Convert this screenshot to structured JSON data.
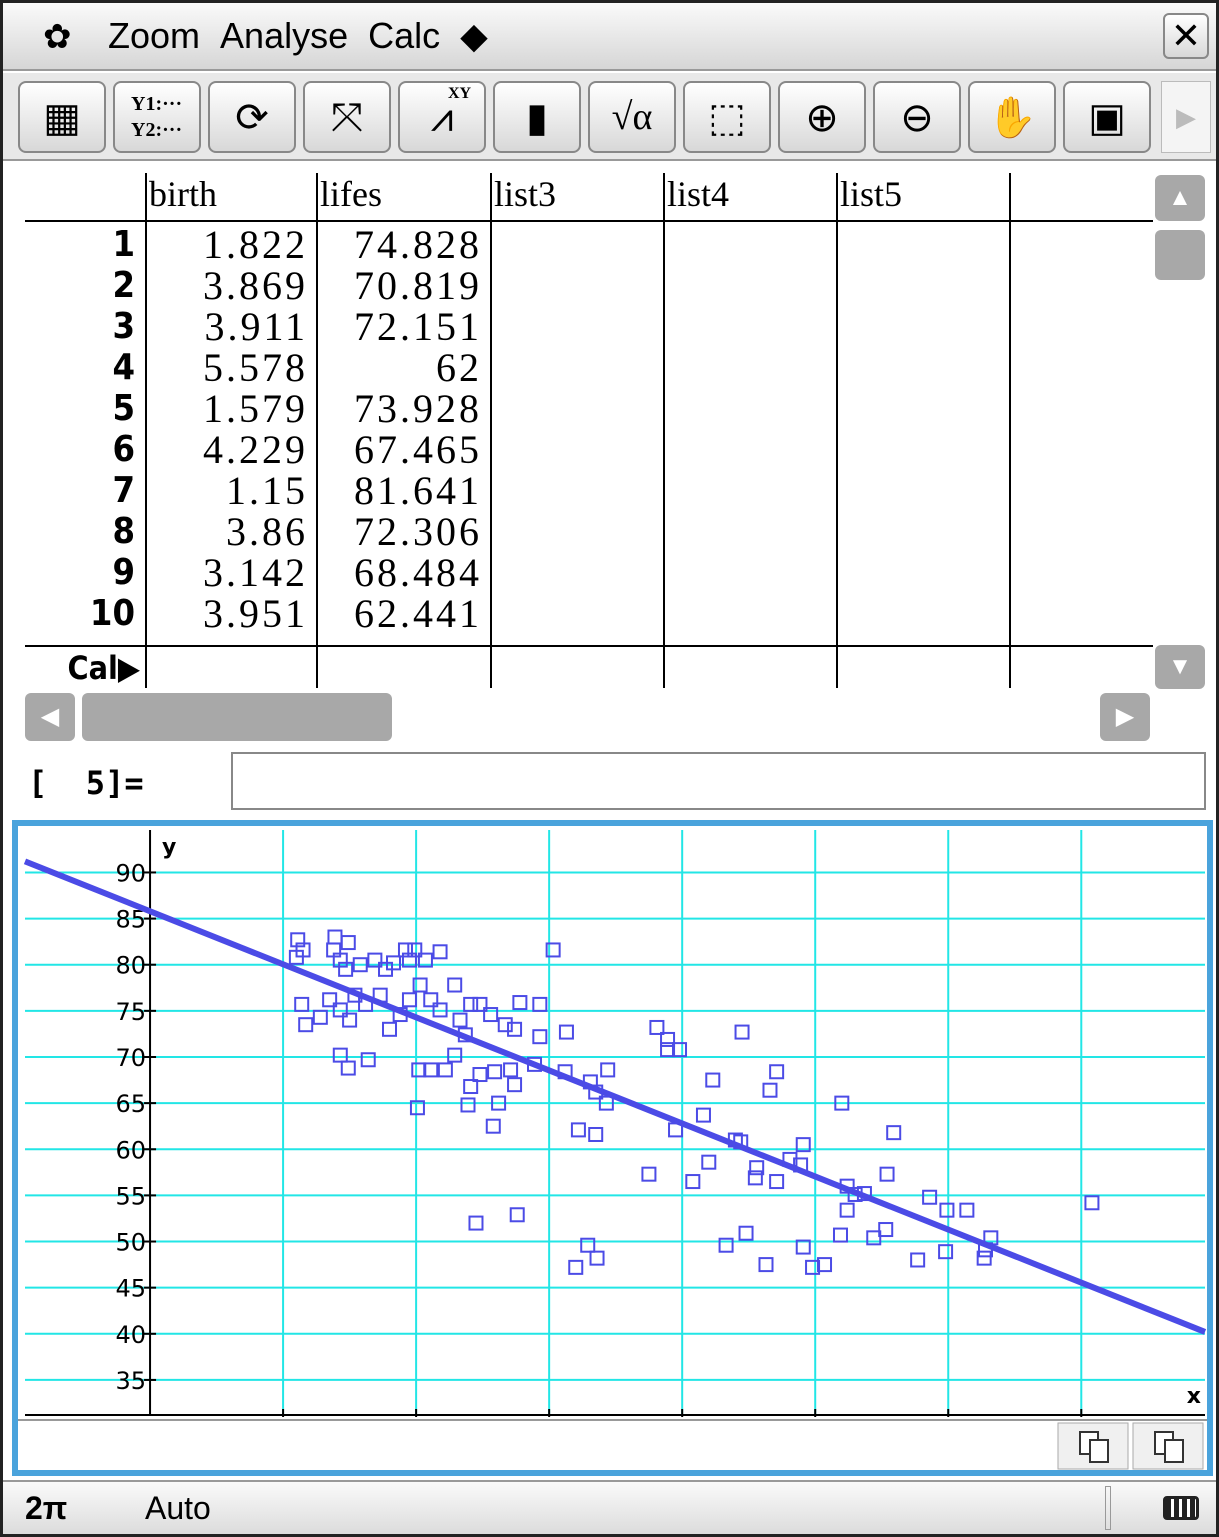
{
  "menu": {
    "items": [
      "Zoom",
      "Analyse",
      "Calc",
      "◆"
    ]
  },
  "toolbar": {
    "y_labels": [
      "Y1:···",
      "Y2:···"
    ],
    "sqrt_alpha": "√α",
    "xy": "XY"
  },
  "table": {
    "headers": [
      "birth",
      "lifes",
      "list3",
      "list4",
      "list5"
    ],
    "row_numbers": [
      1,
      2,
      3,
      4,
      5,
      6,
      7,
      8,
      9,
      10
    ],
    "rows": [
      [
        1.822,
        74.828
      ],
      [
        3.869,
        70.819
      ],
      [
        3.911,
        72.151
      ],
      [
        5.578,
        62
      ],
      [
        1.579,
        73.928
      ],
      [
        4.229,
        67.465
      ],
      [
        1.15,
        81.641
      ],
      [
        3.86,
        72.306
      ],
      [
        3.142,
        68.484
      ],
      [
        3.951,
        62.441
      ]
    ],
    "cal_label": "Cal▶"
  },
  "entry": {
    "label": "[  5]="
  },
  "chart_data": {
    "type": "scatter",
    "x_label": "x",
    "y_label": "y",
    "xlim": [
      -0.94,
      7.93
    ],
    "ylim": [
      31.2,
      94.6
    ],
    "xticks": [
      1,
      2,
      3,
      4,
      5,
      6,
      7
    ],
    "yticks": [
      35,
      40,
      45,
      50,
      55,
      60,
      65,
      70,
      75,
      80,
      85,
      90
    ],
    "grid": true,
    "grid_color": "#22e6e6",
    "points": {
      "color": "#4b4be6",
      "x": [
        1.11,
        1.15,
        1.1,
        1.39,
        1.38,
        1.49,
        1.43,
        1.47,
        1.58,
        1.69,
        1.77,
        1.83,
        1.92,
        1.99,
        1.95,
        2.07,
        2.18,
        3.03,
        1.14,
        1.17,
        1.28,
        1.35,
        1.43,
        1.5,
        1.54,
        1.62,
        1.73,
        1.8,
        1.88,
        1.95,
        2.03,
        2.11,
        2.18,
        2.29,
        2.33,
        2.41,
        2.48,
        2.56,
        2.67,
        2.78,
        2.93,
        2.74,
        2.93,
        3.13,
        1.43,
        1.49,
        1.64,
        2.02,
        2.11,
        2.22,
        2.29,
        2.37,
        2.41,
        2.48,
        2.59,
        2.71,
        2.74,
        2.89,
        2.01,
        2.39,
        2.62,
        2.58,
        3.12,
        3.31,
        3.35,
        3.43,
        3.44,
        3.22,
        3.35,
        3.81,
        3.89,
        3.89,
        3.98,
        4.45,
        4.23,
        4.71,
        4.66,
        5.2,
        4.16,
        3.95,
        4.4,
        4.44,
        4.91,
        5.59,
        4.2,
        3.75,
        4.08,
        4.56,
        4.55,
        4.71,
        4.81,
        4.89,
        5.54,
        5.24,
        5.3,
        5.37,
        5.24,
        5.86,
        5.99,
        6.14,
        7.08,
        2.45,
        2.76,
        3.29,
        3.2,
        3.36,
        4.33,
        4.48,
        4.63,
        4.91,
        4.98,
        5.07,
        5.19,
        5.44,
        5.53,
        5.77,
        5.98,
        6.27,
        6.32,
        6.28
      ],
      "y": [
        82.7,
        81.6,
        80.8,
        83.0,
        81.6,
        82.4,
        80.5,
        79.5,
        80.0,
        80.5,
        79.5,
        80.2,
        81.6,
        81.6,
        80.5,
        80.5,
        81.4,
        81.6,
        75.7,
        73.5,
        74.3,
        76.2,
        75.1,
        74.0,
        76.7,
        75.7,
        76.7,
        73.0,
        74.6,
        76.2,
        77.8,
        76.2,
        75.1,
        77.8,
        74.0,
        75.7,
        75.7,
        74.6,
        73.5,
        75.9,
        75.7,
        73.0,
        72.2,
        72.7,
        70.2,
        68.8,
        69.7,
        68.6,
        68.6,
        68.6,
        70.2,
        72.4,
        66.8,
        68.1,
        68.4,
        68.6,
        67.0,
        69.2,
        64.5,
        64.8,
        65.0,
        62.5,
        68.4,
        67.3,
        66.2,
        65.0,
        68.6,
        62.1,
        61.6,
        73.2,
        71.9,
        70.8,
        70.8,
        72.7,
        67.5,
        68.4,
        66.4,
        65.0,
        63.7,
        62.1,
        61.0,
        60.8,
        60.5,
        61.8,
        58.6,
        57.3,
        56.5,
        58.0,
        56.9,
        56.5,
        58.9,
        58.3,
        57.3,
        56.0,
        55.1,
        55.2,
        53.4,
        54.8,
        53.4,
        53.4,
        54.2,
        52.0,
        52.9,
        49.6,
        47.2,
        48.2,
        49.6,
        50.9,
        47.5,
        49.4,
        47.2,
        47.5,
        50.7,
        50.4,
        51.3,
        48.0,
        48.9,
        48.2,
        50.4,
        49.1
      ]
    },
    "fit_line": {
      "color": "#4b4be6",
      "x": [
        -0.94,
        7.93
      ],
      "y": [
        91.2,
        40.2
      ]
    }
  },
  "status": {
    "left": "2π",
    "mode": "Auto"
  }
}
